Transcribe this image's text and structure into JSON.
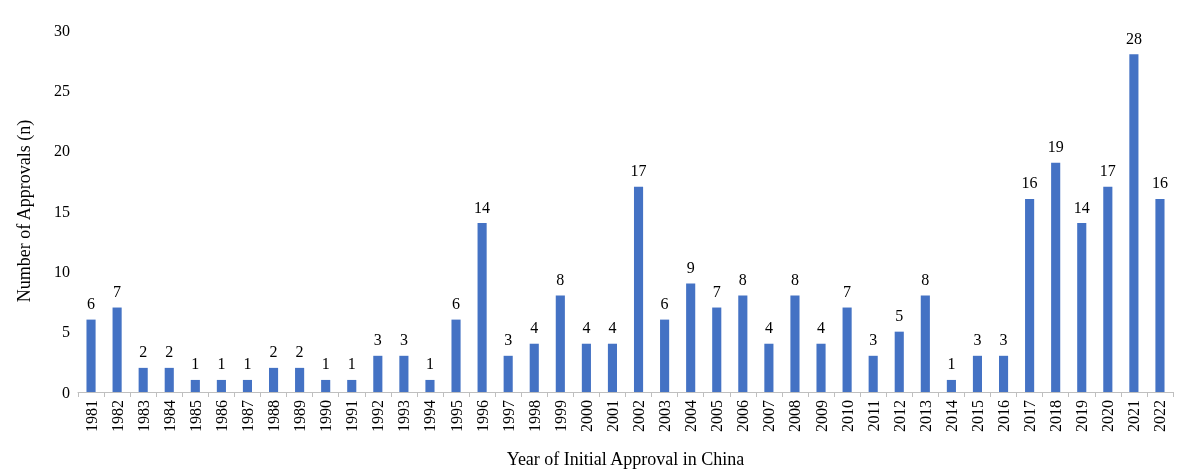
{
  "chart_data": {
    "type": "bar",
    "xlabel": "Year of Initial Approval in China",
    "ylabel": "Number of Approvals (n)",
    "categories": [
      "1981",
      "1982",
      "1983",
      "1984",
      "1985",
      "1986",
      "1987",
      "1988",
      "1989",
      "1990",
      "1991",
      "1992",
      "1993",
      "1994",
      "1995",
      "1996",
      "1997",
      "1998",
      "1999",
      "2000",
      "2001",
      "2002",
      "2003",
      "2004",
      "2005",
      "2006",
      "2007",
      "2008",
      "2009",
      "2010",
      "2011",
      "2012",
      "2013",
      "2014",
      "2015",
      "2016",
      "2017",
      "2018",
      "2019",
      "2020",
      "2021",
      "2022"
    ],
    "values": [
      6,
      7,
      2,
      2,
      1,
      1,
      1,
      2,
      2,
      1,
      1,
      3,
      3,
      1,
      6,
      14,
      3,
      4,
      8,
      4,
      4,
      17,
      6,
      9,
      7,
      8,
      4,
      8,
      4,
      7,
      3,
      5,
      8,
      1,
      3,
      3,
      16,
      19,
      14,
      17,
      28,
      16
    ],
    "color": "#4472c4",
    "ylim": [
      0,
      30
    ],
    "yticks": [
      0,
      5,
      10,
      15,
      20,
      25,
      30
    ],
    "data_labels": true
  }
}
